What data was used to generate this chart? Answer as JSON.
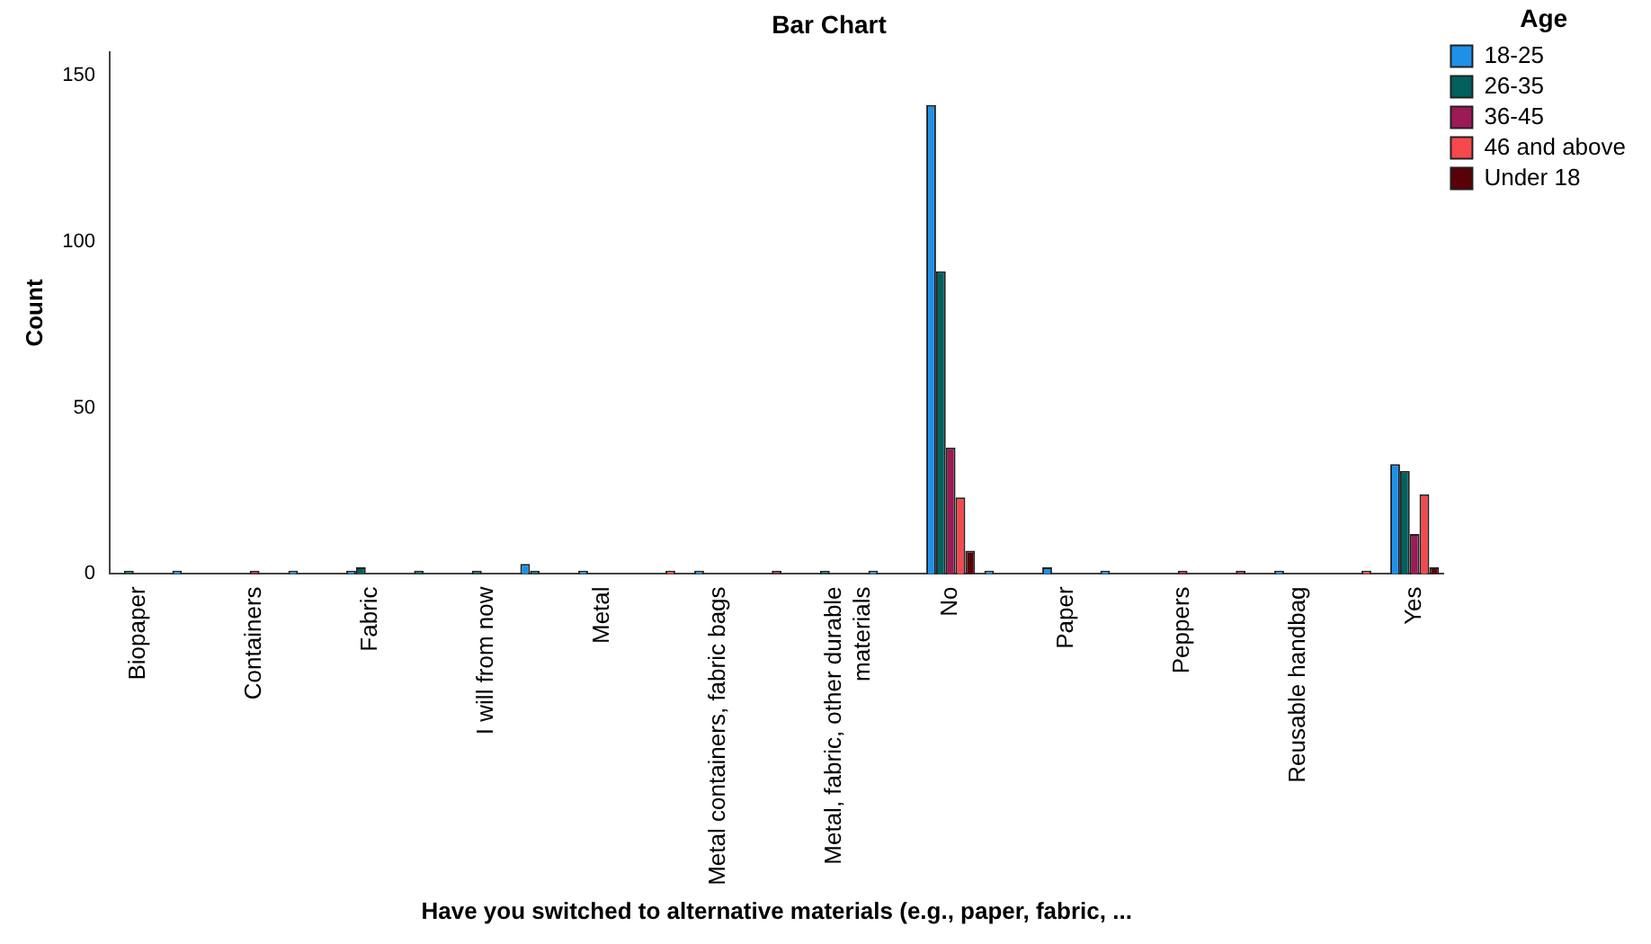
{
  "chart_data": {
    "type": "bar",
    "title": "Bar Chart",
    "xlabel": "Have you switched to alternative materials (e.g., paper, fabric, ...",
    "ylabel": "Count",
    "legend_title": "Age",
    "categories": [
      "Biopaper",
      null,
      "Containers",
      null,
      "Fabric",
      null,
      "I will from now",
      null,
      "Metal",
      null,
      "Metal containers, fabric bags",
      null,
      "Metal, fabric, other durable materials",
      null,
      "No",
      null,
      "Paper",
      null,
      "Peppers",
      null,
      "Reusable handbag",
      null,
      "Yes"
    ],
    "series": [
      {
        "name": "18-25",
        "color": "#1e90e8",
        "values": [
          null,
          1,
          null,
          1,
          1,
          null,
          null,
          3,
          1,
          null,
          1,
          null,
          null,
          1,
          141,
          1,
          2,
          1,
          null,
          null,
          1,
          null,
          33
        ]
      },
      {
        "name": "26-35",
        "color": "#00605e",
        "values": [
          1,
          null,
          null,
          null,
          2,
          1,
          1,
          1,
          null,
          null,
          null,
          null,
          1,
          null,
          91,
          null,
          null,
          null,
          null,
          null,
          null,
          null,
          31
        ]
      },
      {
        "name": "36-45",
        "color": "#9c1a55",
        "values": [
          null,
          null,
          1,
          null,
          null,
          null,
          null,
          null,
          null,
          null,
          null,
          1,
          null,
          null,
          38,
          null,
          null,
          null,
          1,
          1,
          null,
          null,
          12
        ]
      },
      {
        "name": "46 and above",
        "color": "#f7484e",
        "values": [
          null,
          null,
          null,
          null,
          null,
          null,
          null,
          null,
          null,
          1,
          null,
          null,
          null,
          null,
          23,
          null,
          null,
          null,
          null,
          null,
          null,
          1,
          24
        ]
      },
      {
        "name": "Under 18",
        "color": "#5a0006",
        "values": [
          null,
          null,
          null,
          null,
          null,
          null,
          null,
          null,
          null,
          null,
          null,
          null,
          null,
          null,
          7,
          null,
          null,
          null,
          null,
          null,
          null,
          null,
          2
        ]
      }
    ],
    "ylim": [
      0,
      157
    ],
    "yticks": [
      0,
      50,
      100,
      150
    ],
    "grid": false,
    "legend": "top right"
  }
}
